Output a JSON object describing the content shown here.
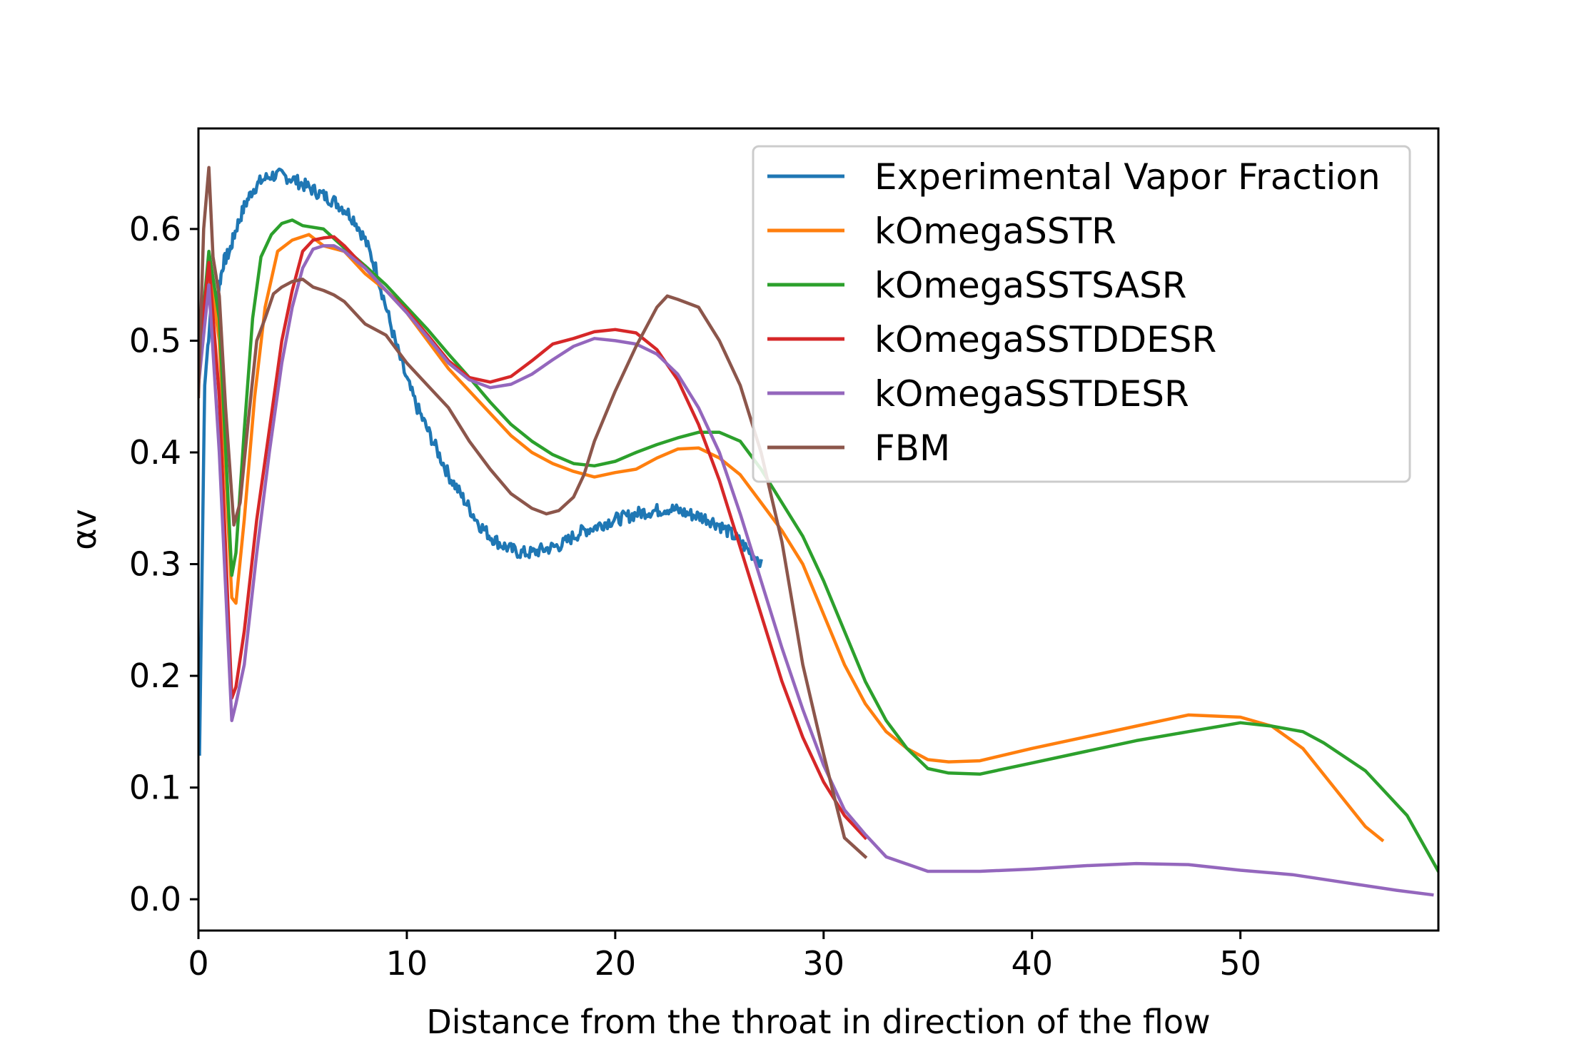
{
  "chart_data": {
    "type": "line",
    "title": "",
    "xlabel": "Distance from the throat in direction of the flow",
    "ylabel": "αv",
    "xlim": [
      0,
      59.5
    ],
    "ylim": [
      -0.028,
      0.69
    ],
    "xticks": [
      0,
      10,
      20,
      30,
      40,
      50
    ],
    "yticks": [
      0.0,
      0.1,
      0.2,
      0.3,
      0.4,
      0.5,
      0.6
    ],
    "xtick_labels": [
      "0",
      "10",
      "20",
      "30",
      "40",
      "50"
    ],
    "ytick_labels": [
      "0.0",
      "0.1",
      "0.2",
      "0.3",
      "0.4",
      "0.5",
      "0.6"
    ],
    "grid": false,
    "legend_position": "top-right",
    "series": [
      {
        "name": "Experimental Vapor Fraction",
        "color": "#1f77b4",
        "noisy": true,
        "x": [
          0.05,
          0.3,
          0.6,
          0.9,
          1.2,
          1.5,
          1.8,
          2.2,
          2.6,
          3.0,
          3.5,
          4.0,
          4.5,
          5.0,
          5.5,
          6.0,
          6.5,
          7.0,
          7.5,
          8.0,
          8.5,
          9.0,
          9.5,
          10.0,
          10.5,
          11.0,
          11.5,
          12.0,
          12.5,
          13.0,
          13.5,
          14.0,
          14.5,
          15.0,
          15.5,
          16.0,
          16.5,
          17.0,
          17.5,
          18.0,
          18.5,
          19.0,
          19.5,
          20.0,
          20.5,
          21.0,
          21.5,
          22.0,
          22.5,
          23.0,
          23.5,
          24.0,
          24.5,
          25.0,
          25.5,
          26.0,
          26.5,
          27.0
        ],
        "y": [
          0.13,
          0.46,
          0.53,
          0.54,
          0.57,
          0.58,
          0.6,
          0.62,
          0.635,
          0.643,
          0.648,
          0.648,
          0.645,
          0.64,
          0.635,
          0.63,
          0.625,
          0.618,
          0.608,
          0.59,
          0.565,
          0.53,
          0.495,
          0.465,
          0.44,
          0.42,
          0.4,
          0.38,
          0.365,
          0.35,
          0.335,
          0.325,
          0.318,
          0.313,
          0.31,
          0.31,
          0.313,
          0.315,
          0.318,
          0.325,
          0.33,
          0.333,
          0.337,
          0.34,
          0.342,
          0.345,
          0.347,
          0.348,
          0.35,
          0.348,
          0.345,
          0.343,
          0.34,
          0.335,
          0.328,
          0.32,
          0.31,
          0.303
        ]
      },
      {
        "name": "kOmegaSSTR",
        "color": "#ff7f0e",
        "x": [
          0.0,
          0.5,
          1.0,
          1.6,
          1.8,
          2.2,
          2.7,
          3.2,
          3.8,
          4.5,
          5.3,
          6.0,
          7.0,
          8.0,
          9.0,
          10.0,
          11.0,
          12.0,
          13.0,
          14.0,
          15.0,
          16.0,
          17.0,
          18.0,
          19.0,
          20.0,
          21.0,
          22.0,
          23.0,
          24.0,
          25.0,
          26.0,
          27.0,
          28.0,
          29.0,
          30.0,
          31.0,
          32.0,
          33.0,
          34.0,
          35.0,
          36.0,
          37.5,
          40.0,
          42.5,
          45.0,
          47.5,
          50.0,
          51.5,
          53.0,
          54.5,
          56.0,
          56.8
        ],
        "y": [
          0.46,
          0.57,
          0.5,
          0.27,
          0.265,
          0.34,
          0.45,
          0.53,
          0.58,
          0.59,
          0.595,
          0.585,
          0.58,
          0.56,
          0.545,
          0.525,
          0.5,
          0.475,
          0.455,
          0.435,
          0.415,
          0.4,
          0.39,
          0.383,
          0.378,
          0.382,
          0.385,
          0.395,
          0.403,
          0.404,
          0.395,
          0.38,
          0.355,
          0.33,
          0.3,
          0.255,
          0.21,
          0.175,
          0.15,
          0.135,
          0.125,
          0.123,
          0.124,
          0.135,
          0.145,
          0.155,
          0.165,
          0.163,
          0.155,
          0.135,
          0.1,
          0.065,
          0.053
        ]
      },
      {
        "name": "kOmegaSSTSASR",
        "color": "#2ca02c",
        "x": [
          0.0,
          0.5,
          1.0,
          1.6,
          1.8,
          2.2,
          2.6,
          3.0,
          3.5,
          4.0,
          4.5,
          5.0,
          6.0,
          7.0,
          8.0,
          9.0,
          10.0,
          11.0,
          12.0,
          13.0,
          14.0,
          15.0,
          16.0,
          17.0,
          18.0,
          19.0,
          20.0,
          21.0,
          22.0,
          23.0,
          24.0,
          25.0,
          26.0,
          27.0,
          28.0,
          29.0,
          30.0,
          31.0,
          32.0,
          33.0,
          34.0,
          35.0,
          36.0,
          37.5,
          40.0,
          42.5,
          45.0,
          47.5,
          50.0,
          51.5,
          53.0,
          54.0,
          56.0,
          58.0,
          59.5
        ],
        "y": [
          0.48,
          0.58,
          0.52,
          0.29,
          0.31,
          0.42,
          0.52,
          0.575,
          0.595,
          0.605,
          0.608,
          0.603,
          0.6,
          0.583,
          0.567,
          0.55,
          0.53,
          0.51,
          0.488,
          0.467,
          0.445,
          0.425,
          0.41,
          0.398,
          0.39,
          0.388,
          0.392,
          0.4,
          0.407,
          0.413,
          0.418,
          0.418,
          0.41,
          0.385,
          0.355,
          0.325,
          0.285,
          0.24,
          0.195,
          0.16,
          0.135,
          0.117,
          0.113,
          0.112,
          0.122,
          0.132,
          0.142,
          0.15,
          0.158,
          0.155,
          0.15,
          0.14,
          0.115,
          0.075,
          0.025
        ]
      },
      {
        "name": "kOmegaSSTDDESR",
        "color": "#d62728",
        "x": [
          0.0,
          0.5,
          1.0,
          1.6,
          1.8,
          2.2,
          2.8,
          3.4,
          4.0,
          4.5,
          5.0,
          5.5,
          6.0,
          6.5,
          7.0,
          8.0,
          9.0,
          10.0,
          11.0,
          12.0,
          13.0,
          14.0,
          15.0,
          16.0,
          17.0,
          18.0,
          19.0,
          20.0,
          21.0,
          22.0,
          23.0,
          24.0,
          25.0,
          26.0,
          27.0,
          28.0,
          29.0,
          30.0,
          31.0,
          32.0
        ],
        "y": [
          0.48,
          0.57,
          0.45,
          0.18,
          0.19,
          0.24,
          0.34,
          0.42,
          0.5,
          0.545,
          0.58,
          0.59,
          0.592,
          0.593,
          0.585,
          0.565,
          0.545,
          0.527,
          0.505,
          0.482,
          0.467,
          0.463,
          0.468,
          0.482,
          0.497,
          0.502,
          0.508,
          0.51,
          0.507,
          0.492,
          0.465,
          0.425,
          0.375,
          0.315,
          0.255,
          0.195,
          0.145,
          0.105,
          0.075,
          0.055
        ]
      },
      {
        "name": "kOmegaSSTDESR",
        "color": "#9467bd",
        "x": [
          0.0,
          0.5,
          1.0,
          1.6,
          1.8,
          2.2,
          2.8,
          3.4,
          4.0,
          4.5,
          5.0,
          5.5,
          6.0,
          6.5,
          7.0,
          8.0,
          9.0,
          10.0,
          11.0,
          12.0,
          13.0,
          14.0,
          15.0,
          16.0,
          17.0,
          18.0,
          19.0,
          20.0,
          21.0,
          22.0,
          23.0,
          24.0,
          25.0,
          26.0,
          27.0,
          28.0,
          29.0,
          30.0,
          31.0,
          32.0,
          33.0,
          35.0,
          37.5,
          40.0,
          42.5,
          45.0,
          47.5,
          50.0,
          52.5,
          55.0,
          57.5,
          59.2
        ],
        "y": [
          0.46,
          0.55,
          0.4,
          0.16,
          0.175,
          0.21,
          0.31,
          0.4,
          0.48,
          0.53,
          0.565,
          0.582,
          0.585,
          0.585,
          0.58,
          0.565,
          0.545,
          0.525,
          0.503,
          0.48,
          0.465,
          0.458,
          0.461,
          0.47,
          0.483,
          0.495,
          0.502,
          0.5,
          0.497,
          0.488,
          0.47,
          0.44,
          0.4,
          0.345,
          0.285,
          0.225,
          0.17,
          0.12,
          0.08,
          0.058,
          0.038,
          0.025,
          0.025,
          0.027,
          0.03,
          0.032,
          0.031,
          0.026,
          0.022,
          0.015,
          0.008,
          0.004
        ]
      },
      {
        "name": "FBM",
        "color": "#8c564b",
        "x": [
          0.0,
          0.25,
          0.5,
          0.7,
          1.0,
          1.3,
          1.7,
          2.0,
          2.4,
          2.8,
          3.2,
          3.6,
          4.0,
          4.5,
          5.0,
          5.5,
          6.0,
          6.5,
          7.0,
          8.0,
          9.0,
          10.0,
          11.0,
          12.0,
          13.0,
          14.0,
          15.0,
          16.0,
          16.7,
          17.3,
          18.0,
          18.5,
          19.0,
          20.0,
          21.0,
          22.0,
          22.5,
          23.0,
          24.0,
          25.0,
          26.0,
          27.0,
          28.0,
          29.0,
          30.0,
          31.0,
          32.0
        ],
        "y": [
          0.45,
          0.6,
          0.655,
          0.575,
          0.54,
          0.44,
          0.335,
          0.355,
          0.43,
          0.5,
          0.52,
          0.542,
          0.548,
          0.553,
          0.555,
          0.548,
          0.545,
          0.541,
          0.535,
          0.515,
          0.505,
          0.48,
          0.46,
          0.44,
          0.41,
          0.385,
          0.363,
          0.35,
          0.345,
          0.348,
          0.36,
          0.38,
          0.41,
          0.455,
          0.495,
          0.53,
          0.54,
          0.537,
          0.53,
          0.5,
          0.46,
          0.4,
          0.32,
          0.21,
          0.13,
          0.055,
          0.038
        ]
      }
    ]
  }
}
